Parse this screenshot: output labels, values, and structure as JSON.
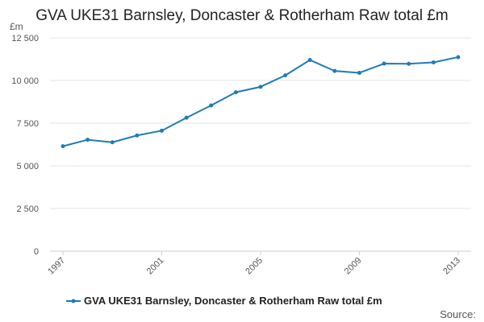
{
  "chart_data": {
    "type": "line",
    "title": "GVA UKE31 Barnsley, Doncaster & Rotherham Raw total £m",
    "y_unit": "£m",
    "x": [
      1997,
      1998,
      1999,
      2000,
      2001,
      2002,
      2003,
      2004,
      2005,
      2006,
      2007,
      2008,
      2009,
      2010,
      2011,
      2012,
      2013
    ],
    "x_tick_labels": [
      "1997",
      "2001",
      "2005",
      "2009",
      "2013"
    ],
    "y_tick_labels": [
      "0",
      "2 500",
      "5 000",
      "7 500",
      "10 000",
      "12 500"
    ],
    "ylim": [
      0,
      12500
    ],
    "series": [
      {
        "name": "GVA UKE31 Barnsley, Doncaster & Rotherham Raw total £m",
        "color": "#1f7bb8",
        "values": [
          6150,
          6530,
          6380,
          6780,
          7060,
          7820,
          8540,
          9310,
          9630,
          10300,
          11200,
          10560,
          10450,
          10990,
          10980,
          11060,
          11370
        ]
      }
    ],
    "grid": "horizontal",
    "legend_position": "bottom",
    "source_label": "Source:"
  }
}
